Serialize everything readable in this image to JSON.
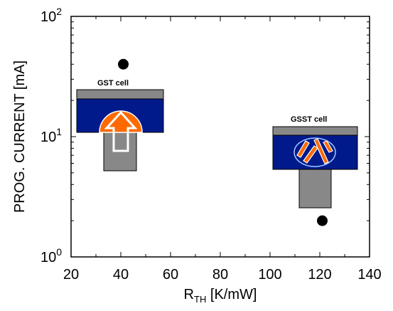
{
  "chart_data": {
    "type": "scatter",
    "xlabel": {
      "main": "R",
      "sub": "TH",
      "unit": " [K/mW]"
    },
    "ylabel": "PROG. CURRENT [mA]",
    "xlim": [
      20,
      140
    ],
    "ylim": [
      1,
      100
    ],
    "y_scale": "log",
    "grid": false,
    "x_ticks": [
      "20",
      "40",
      "60",
      "80",
      "100",
      "120",
      "140"
    ],
    "y_ticks": [
      {
        "base": "10",
        "exp": "0"
      },
      {
        "base": "10",
        "exp": "1"
      },
      {
        "base": "10",
        "exp": "2"
      }
    ],
    "points": [
      {
        "x": 41,
        "y": 40
      },
      {
        "x": 121,
        "y": 2
      }
    ],
    "annotations": [
      "GST cell",
      "GSST cell"
    ],
    "colors": {
      "dielectric": "#001a8c",
      "electrode": "#888888",
      "active_region": "#ff6a00",
      "points": "#000000"
    }
  }
}
